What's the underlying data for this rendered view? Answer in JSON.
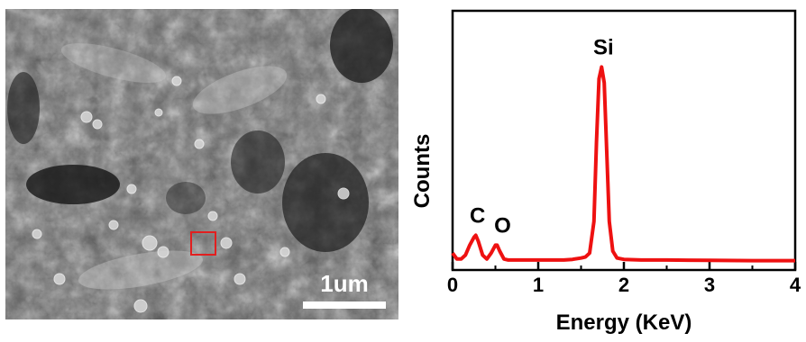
{
  "sem_image": {
    "scale_bar_label": "1um",
    "roi_box_color": "#e21f1f"
  },
  "chart_data": {
    "type": "line",
    "xlabel": "Energy (KeV)",
    "ylabel": "Counts",
    "xlim": [
      0,
      4
    ],
    "ylim": [
      0,
      100
    ],
    "xticks": [
      "0",
      "1",
      "2",
      "3",
      "4"
    ],
    "grid": false,
    "series": [
      {
        "color": "#ee1111",
        "x": [
          0.0,
          0.05,
          0.1,
          0.15,
          0.2,
          0.25,
          0.27,
          0.3,
          0.35,
          0.4,
          0.45,
          0.5,
          0.52,
          0.55,
          0.6,
          0.65,
          0.7,
          0.8,
          0.9,
          1.0,
          1.1,
          1.2,
          1.3,
          1.4,
          1.5,
          1.55,
          1.6,
          1.65,
          1.68,
          1.71,
          1.74,
          1.77,
          1.8,
          1.83,
          1.87,
          1.92,
          2.0,
          2.2,
          2.5,
          3.0,
          3.5,
          4.0
        ],
        "y": [
          4,
          1,
          1,
          3,
          8,
          12,
          13,
          10,
          3,
          1,
          4,
          8,
          8,
          5,
          1,
          0.5,
          0.5,
          0.5,
          0.5,
          0.5,
          0.5,
          0.5,
          0.5,
          0.8,
          1.5,
          2,
          4,
          20,
          60,
          92,
          98,
          90,
          55,
          20,
          5,
          1.5,
          0.8,
          0.5,
          0.5,
          0.3,
          0.2,
          0.2
        ]
      }
    ],
    "annotations": [
      {
        "text": "C",
        "x": 0.27,
        "y": 13
      },
      {
        "text": "O",
        "x": 0.52,
        "y": 8
      },
      {
        "text": "Si",
        "x": 1.74,
        "y": 98
      }
    ]
  }
}
